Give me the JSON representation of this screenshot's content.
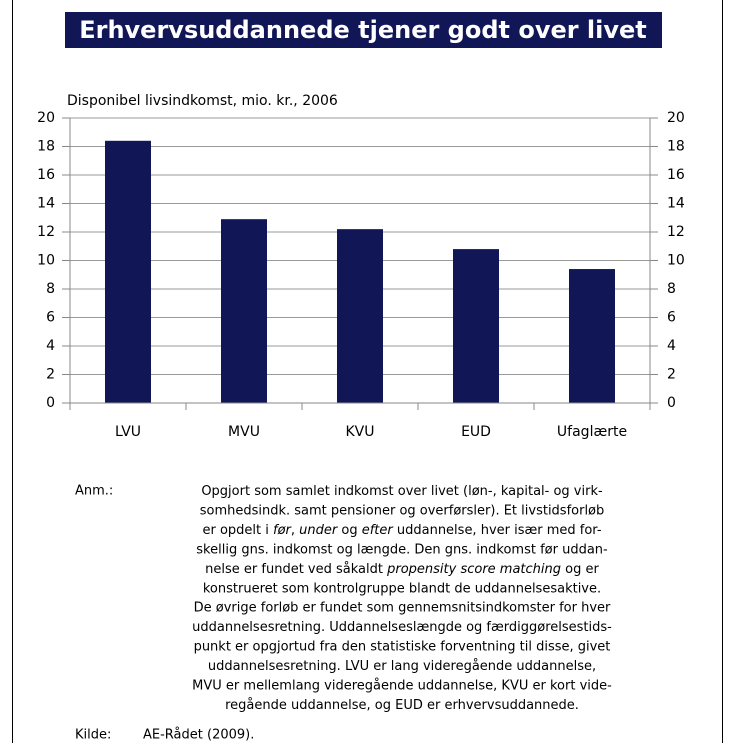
{
  "chart_data": {
    "type": "bar",
    "title": "Erhvervsuddannede tjener godt over livet",
    "ylabel": "Disponibel livsindkomst, mio. kr., 2006",
    "categories": [
      "LVU",
      "MVU",
      "KVU",
      "EUD",
      "Ufaglærte"
    ],
    "values": [
      18.4,
      12.9,
      12.2,
      10.8,
      9.4
    ],
    "color": "#111657",
    "ylim": [
      0,
      20
    ],
    "yticks": [
      0,
      2,
      4,
      6,
      8,
      10,
      12,
      14,
      16,
      18,
      20
    ],
    "y2lim": [
      0,
      20
    ],
    "y2ticks": [
      0,
      2,
      4,
      6,
      8,
      10,
      12,
      14,
      16,
      18,
      20
    ],
    "grid": true
  },
  "notes": {
    "label": "Anm.:",
    "lines": [
      [
        "Opgjort som samlet indkomst over livet (løn-, kapital- og virk-"
      ],
      [
        "somhedsindk. samt pensioner og overførsler). Et livstidsforløb"
      ],
      [
        "er opdelt i ",
        {
          "text": "før",
          "italic": true
        },
        ", ",
        {
          "text": "under",
          "italic": true
        },
        " og ",
        {
          "text": "efter",
          "italic": true
        },
        " uddannelse, hver især med for-"
      ],
      [
        "skellig gns. indkomst og længde. Den gns. indkomst før uddan-"
      ],
      [
        "nelse er fundet ved såkaldt ",
        {
          "text": "propensity score matching",
          "italic": true
        },
        " og er"
      ],
      [
        "konstrueret som kontrolgruppe blandt de uddannelsesaktive."
      ],
      [
        "De øvrige forløb er fundet som gennemsnitsindkomster for hver"
      ],
      [
        "uddannelsesretning. Uddannelseslængde og færdiggørelsestids-"
      ],
      [
        "punkt er opgjortud fra den statistiske forventning til disse, givet"
      ],
      [
        "uddannelsesretning. LVU er lang videregående uddannelse,"
      ],
      [
        "MVU er mellemlang videregående uddannelse, KVU er kort vide-"
      ],
      [
        "regående uddannelse, og EUD er erhvervsuddannede."
      ]
    ]
  },
  "source": {
    "label": "Kilde:",
    "text": "AE-Rådet (2009)."
  }
}
